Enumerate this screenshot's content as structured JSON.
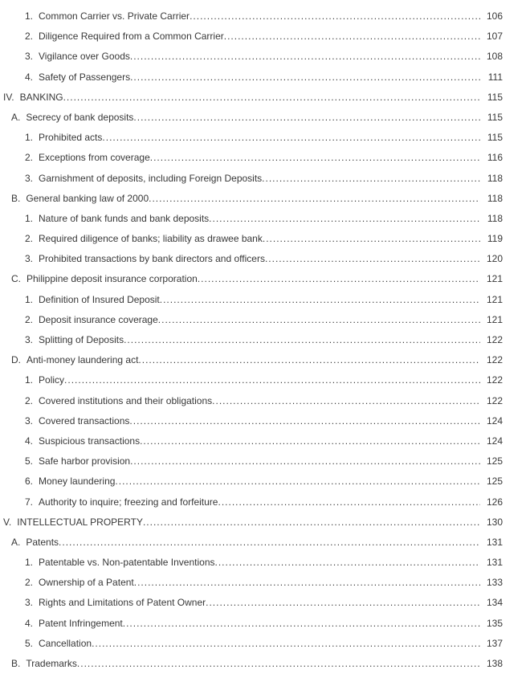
{
  "page": {
    "background": "#ffffff",
    "text_color": "#383838"
  },
  "toc": {
    "entries": [
      {
        "num": "1.",
        "text": "Common Carrier vs. Private Carrier",
        "page": "106",
        "level": 2
      },
      {
        "num": "2.",
        "text": "Diligence Required from a Common Carrier",
        "page": "107",
        "level": 2
      },
      {
        "num": "3.",
        "text": "Vigilance over Goods",
        "page": "108",
        "level": 2
      },
      {
        "num": "4.",
        "text": "Safety of Passengers",
        "page": "111",
        "level": 2
      },
      {
        "num": "IV.",
        "text": "BANKING",
        "page": "115",
        "level": 0
      },
      {
        "num": "A.",
        "text": "Secrecy of bank deposits",
        "page": "115",
        "level": 1
      },
      {
        "num": "1.",
        "text": "Prohibited acts",
        "page": "115",
        "level": 2
      },
      {
        "num": "2.",
        "text": "Exceptions from coverage",
        "page": "116",
        "level": 2
      },
      {
        "num": "3.",
        "text": "Garnishment of deposits, including Foreign Deposits",
        "page": "118",
        "level": 2
      },
      {
        "num": "B.",
        "text": "General banking law of 2000",
        "page": "118",
        "level": 1
      },
      {
        "num": "1.",
        "text": "Nature of bank funds and bank deposits",
        "page": "118",
        "level": 2
      },
      {
        "num": "2.",
        "text": "Required diligence of banks; liability as drawee bank",
        "page": "119",
        "level": 2
      },
      {
        "num": "3.",
        "text": "Prohibited transactions by bank directors and officers",
        "page": "120",
        "level": 2
      },
      {
        "num": "C.",
        "text": "Philippine deposit insurance corporation",
        "page": "121",
        "level": 1
      },
      {
        "num": "1.",
        "text": "Definition of Insured Deposit",
        "page": "121",
        "level": 2
      },
      {
        "num": "2.",
        "text": "Deposit insurance coverage",
        "page": "121",
        "level": 2
      },
      {
        "num": "3.",
        "text": "Splitting of Deposits",
        "page": "122",
        "level": 2
      },
      {
        "num": "D.",
        "text": "Anti-money laundering act",
        "page": "122",
        "level": 1
      },
      {
        "num": "1.",
        "text": "Policy",
        "page": "122",
        "level": 2
      },
      {
        "num": "2.",
        "text": "Covered institutions and their obligations",
        "page": "122",
        "level": 2
      },
      {
        "num": "3.",
        "text": "Covered transactions",
        "page": "124",
        "level": 2
      },
      {
        "num": "4.",
        "text": "Suspicious transactions",
        "page": "124",
        "level": 2
      },
      {
        "num": "5.",
        "text": "Safe harbor provision",
        "page": "125",
        "level": 2
      },
      {
        "num": "6.",
        "text": "Money laundering",
        "page": "125",
        "level": 2
      },
      {
        "num": "7.",
        "text": "Authority to inquire; freezing and forfeiture",
        "page": "126",
        "level": 2
      },
      {
        "num": "V.",
        "text": "INTELLECTUAL PROPERTY",
        "page": "130",
        "level": 0
      },
      {
        "num": "A.",
        "text": "Patents",
        "page": "131",
        "level": 1
      },
      {
        "num": "1.",
        "text": "Patentable vs. Non-patentable Inventions",
        "page": "131",
        "level": 2
      },
      {
        "num": "2.",
        "text": "Ownership of a Patent",
        "page": "133",
        "level": 2
      },
      {
        "num": "3.",
        "text": "Rights and Limitations of Patent Owner",
        "page": "134",
        "level": 2
      },
      {
        "num": "4.",
        "text": "Patent Infringement",
        "page": "135",
        "level": 2
      },
      {
        "num": "5.",
        "text": "Cancellation",
        "page": "137",
        "level": 2
      },
      {
        "num": "B.",
        "text": "Trademarks",
        "page": "138",
        "level": 1
      }
    ]
  }
}
